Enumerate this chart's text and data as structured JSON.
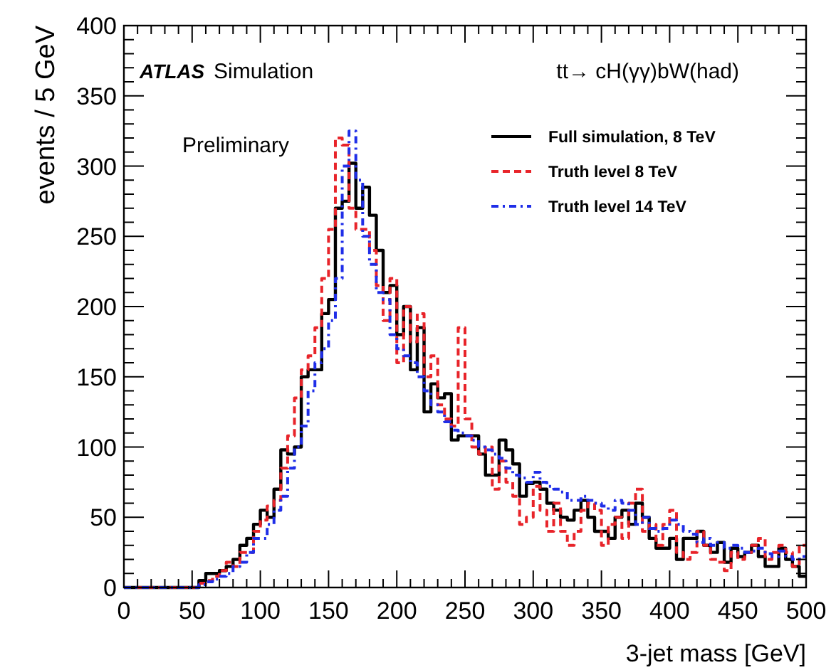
{
  "chart_data": {
    "type": "histogram",
    "xlabel": "3-jet mass [GeV]",
    "ylabel": "events / 5 GeV",
    "annotations": [
      "ATLAS",
      "Simulation",
      "tt→ cH(γγ)bW(had)",
      "Preliminary"
    ],
    "bins": [
      0,
      5,
      10,
      15,
      20,
      25,
      30,
      35,
      40,
      45,
      50,
      55,
      60,
      65,
      70,
      75,
      80,
      85,
      90,
      95,
      100,
      105,
      110,
      115,
      120,
      125,
      130,
      135,
      140,
      145,
      150,
      155,
      160,
      165,
      170,
      175,
      180,
      185,
      190,
      195,
      200,
      205,
      210,
      215,
      220,
      225,
      230,
      235,
      240,
      245,
      250,
      255,
      260,
      265,
      270,
      275,
      280,
      285,
      290,
      295,
      300,
      305,
      310,
      315,
      320,
      325,
      330,
      335,
      340,
      345,
      350,
      355,
      360,
      365,
      370,
      375,
      380,
      385,
      390,
      395,
      400,
      405,
      410,
      415,
      420,
      425,
      430,
      435,
      440,
      445,
      450,
      455,
      460,
      465,
      470,
      475,
      480,
      485,
      490,
      495,
      500
    ],
    "series": [
      {
        "name": "Full simulation, 8 TeV",
        "color": "#000000",
        "line_style": "solid",
        "values": [
          0,
          0,
          0,
          0,
          0,
          0,
          0,
          0,
          0,
          0,
          0,
          5,
          10,
          10,
          12,
          15,
          20,
          30,
          35,
          45,
          55,
          50,
          70,
          98,
          95,
          100,
          150,
          155,
          155,
          195,
          205,
          270,
          275,
          302,
          270,
          285,
          265,
          240,
          210,
          215,
          180,
          200,
          155,
          185,
          125,
          145,
          135,
          138,
          105,
          108,
          108,
          108,
          95,
          80,
          80,
          105,
          98,
          88,
          65,
          74,
          75,
          70,
          60,
          55,
          50,
          48,
          55,
          62,
          50,
          40,
          40,
          35,
          50,
          55,
          45,
          60,
          50,
          35,
          28,
          28,
          35,
          20,
          35,
          35,
          40,
          30,
          25,
          32,
          18,
          28,
          22,
          25,
          30,
          22,
          15,
          15,
          28,
          20,
          15,
          8
        ]
      },
      {
        "name": "Truth level 8 TeV",
        "color": "#e8242a",
        "line_style": "dashed",
        "values": [
          0,
          0,
          0,
          0,
          0,
          0,
          0,
          0,
          0,
          0,
          0,
          3,
          5,
          8,
          12,
          18,
          15,
          25,
          25,
          40,
          48,
          58,
          62,
          85,
          108,
          135,
          155,
          165,
          185,
          220,
          255,
          320,
          315,
          270,
          255,
          255,
          240,
          215,
          190,
          220,
          160,
          200,
          175,
          195,
          150,
          165,
          130,
          120,
          115,
          185,
          120,
          100,
          95,
          100,
          70,
          90,
          75,
          65,
          45,
          50,
          72,
          55,
          40,
          60,
          40,
          30,
          40,
          55,
          60,
          55,
          30,
          45,
          50,
          35,
          60,
          70,
          40,
          45,
          30,
          45,
          55,
          25,
          20,
          25,
          40,
          30,
          20,
          18,
          12,
          25,
          20,
          25,
          30,
          35,
          20,
          25,
          30,
          25,
          15,
          30
        ]
      },
      {
        "name": "Truth level 14 TeV",
        "color": "#1f2ee8",
        "line_style": "dotted",
        "values": [
          0,
          0,
          0,
          0,
          0,
          0,
          0,
          0,
          0,
          0,
          0,
          2,
          4,
          6,
          8,
          10,
          15,
          18,
          25,
          35,
          35,
          45,
          55,
          65,
          85,
          100,
          115,
          140,
          160,
          170,
          190,
          220,
          300,
          325,
          290,
          250,
          230,
          210,
          205,
          180,
          170,
          165,
          160,
          150,
          140,
          130,
          125,
          118,
          112,
          110,
          108,
          105,
          100,
          98,
          95,
          92,
          85,
          80,
          78,
          75,
          82,
          75,
          72,
          70,
          68,
          62,
          62,
          65,
          62,
          60,
          58,
          55,
          62,
          60,
          55,
          45,
          50,
          42,
          40,
          42,
          48,
          45,
          40,
          38,
          32,
          35,
          30,
          32,
          28,
          30,
          28,
          25,
          26,
          28,
          24,
          22,
          26,
          22,
          20,
          22
        ]
      }
    ],
    "xlim": [
      0,
      500
    ],
    "ylim": [
      0,
      400
    ],
    "xticks": [
      0,
      {
        "value": 10,
        "label": null
      },
      {
        "value": 20,
        "label": null
      },
      {
        "value": 30,
        "label": null
      },
      {
        "value": 40,
        "label": null
      },
      50,
      {
        "value": 60,
        "label": null
      },
      {
        "value": 70,
        "label": null
      },
      {
        "value": 80,
        "label": null
      },
      {
        "value": 90,
        "label": null
      },
      100,
      {
        "value": 110,
        "label": null
      },
      {
        "value": 120,
        "label": null
      },
      {
        "value": 130,
        "label": null
      },
      {
        "value": 140,
        "label": null
      },
      150,
      {
        "value": 160,
        "label": null
      },
      {
        "value": 170,
        "label": null
      },
      {
        "value": 180,
        "label": null
      },
      {
        "value": 190,
        "label": null
      },
      200,
      {
        "value": 210,
        "label": null
      },
      {
        "value": 220,
        "label": null
      },
      {
        "value": 230,
        "label": null
      },
      {
        "value": 240,
        "label": null
      },
      250,
      {
        "value": 260,
        "label": null
      },
      {
        "value": 270,
        "label": null
      },
      {
        "value": 280,
        "label": null
      },
      {
        "value": 290,
        "label": null
      },
      300,
      {
        "value": 310,
        "label": null
      },
      {
        "value": 320,
        "label": null
      },
      {
        "value": 330,
        "label": null
      },
      {
        "value": 340,
        "label": null
      },
      350,
      {
        "value": 360,
        "label": null
      },
      {
        "value": 370,
        "label": null
      },
      {
        "value": 380,
        "label": null
      },
      {
        "value": 390,
        "label": null
      },
      400,
      {
        "value": 410,
        "label": null
      },
      {
        "value": 420,
        "label": null
      },
      {
        "value": 430,
        "label": null
      },
      {
        "value": 440,
        "label": null
      },
      450,
      {
        "value": 460,
        "label": null
      },
      {
        "value": 470,
        "label": null
      },
      {
        "value": 480,
        "label": null
      },
      {
        "value": 490,
        "label": null
      },
      500
    ],
    "yticks": [
      0,
      {
        "value": 10,
        "label": null
      },
      {
        "value": 20,
        "label": null
      },
      {
        "value": 30,
        "label": null
      },
      {
        "value": 40,
        "label": null
      },
      50,
      {
        "value": 60,
        "label": null
      },
      {
        "value": 70,
        "label": null
      },
      {
        "value": 80,
        "label": null
      },
      {
        "value": 90,
        "label": null
      },
      100,
      {
        "value": 110,
        "label": null
      },
      {
        "value": 120,
        "label": null
      },
      {
        "value": 130,
        "label": null
      },
      {
        "value": 140,
        "label": null
      },
      150,
      {
        "value": 160,
        "label": null
      },
      {
        "value": 170,
        "label": null
      },
      {
        "value": 180,
        "label": null
      },
      {
        "value": 190,
        "label": null
      },
      200,
      {
        "value": 210,
        "label": null
      },
      {
        "value": 220,
        "label": null
      },
      {
        "value": 230,
        "label": null
      },
      {
        "value": 240,
        "label": null
      },
      250,
      {
        "value": 260,
        "label": null
      },
      {
        "value": 270,
        "label": null
      },
      {
        "value": 280,
        "label": null
      },
      {
        "value": 290,
        "label": null
      },
      300,
      {
        "value": 310,
        "label": null
      },
      {
        "value": 320,
        "label": null
      },
      {
        "value": 330,
        "label": null
      },
      {
        "value": 340,
        "label": null
      },
      350,
      {
        "value": 360,
        "label": null
      },
      {
        "value": 370,
        "label": null
      },
      {
        "value": 380,
        "label": null
      },
      {
        "value": 390,
        "label": null
      },
      400
    ],
    "grid": false,
    "legend": "top right"
  }
}
